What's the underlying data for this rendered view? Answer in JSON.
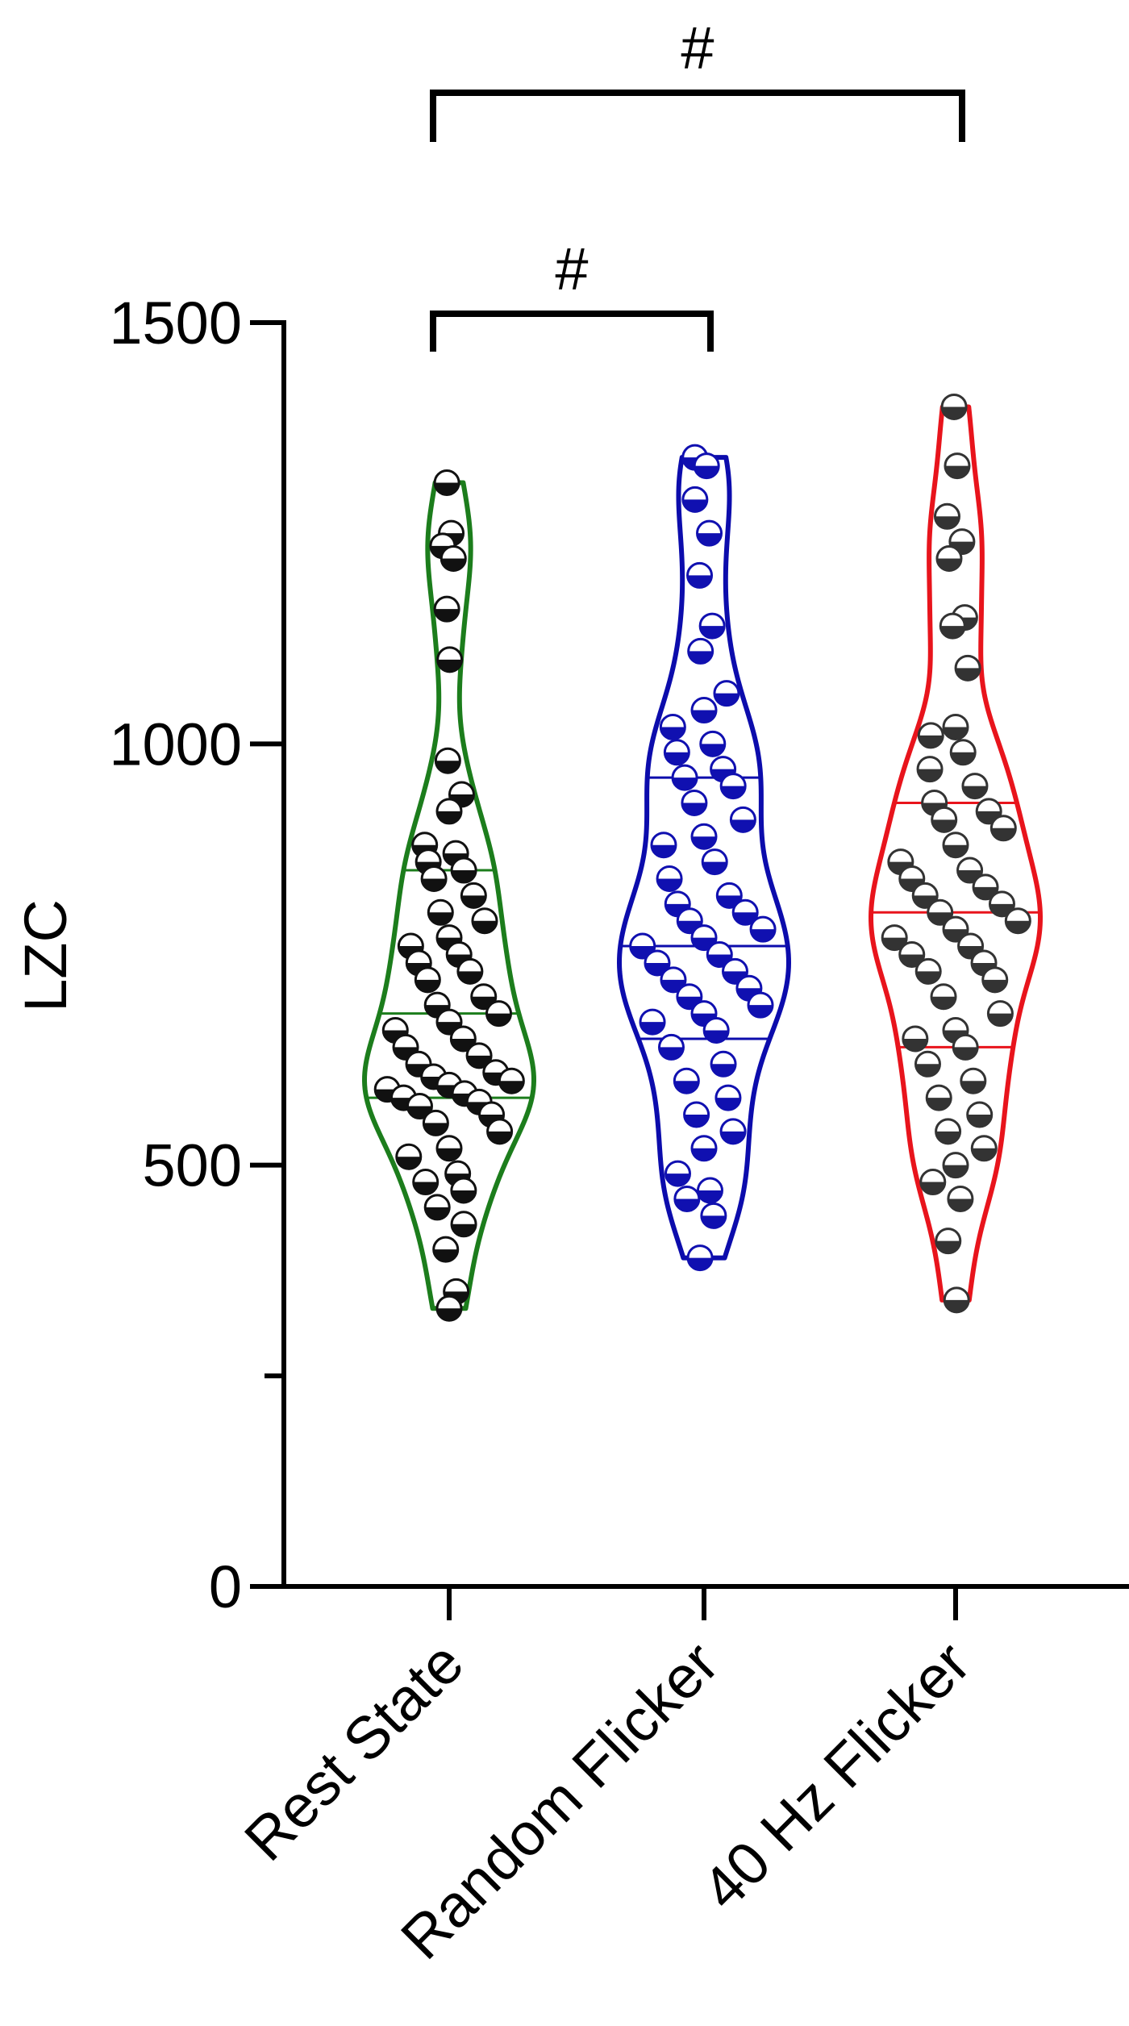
{
  "chart_data": {
    "type": "violin",
    "ylabel": "LZC",
    "categories": [
      "Rest State",
      "Random Flicker",
      "40 Hz Flicker"
    ],
    "ylim": [
      0,
      1500
    ],
    "yticks": [
      0,
      500,
      1000,
      1500
    ],
    "minor_yticks": [
      250
    ],
    "series": [
      {
        "color": "#1c7d1c",
        "marker_color": "#111111",
        "quartiles": [
          580,
          680,
          850
        ],
        "values": [
          1310,
          1250,
          1235,
          1220,
          1160,
          1100,
          980,
          940,
          920,
          880,
          870,
          860,
          850,
          840,
          820,
          800,
          790,
          770,
          760,
          750,
          740,
          730,
          720,
          700,
          690,
          680,
          670,
          660,
          650,
          640,
          630,
          620,
          610,
          605,
          600,
          595,
          590,
          585,
          580,
          575,
          570,
          560,
          550,
          540,
          520,
          510,
          490,
          480,
          470,
          450,
          430,
          400,
          350,
          330
        ]
      },
      {
        "color": "#0c0cac",
        "marker_color": "#1010b0",
        "quartiles": [
          650,
          760,
          960
        ],
        "values": [
          1340,
          1330,
          1290,
          1250,
          1200,
          1140,
          1110,
          1060,
          1040,
          1020,
          1000,
          990,
          970,
          960,
          950,
          930,
          910,
          890,
          880,
          860,
          840,
          820,
          810,
          800,
          790,
          780,
          770,
          760,
          750,
          740,
          730,
          720,
          710,
          700,
          690,
          680,
          670,
          660,
          640,
          620,
          600,
          580,
          560,
          540,
          520,
          490,
          470,
          460,
          440,
          390
        ]
      },
      {
        "color": "#e8141c",
        "marker_color": "#333333",
        "quartiles": [
          640,
          800,
          930
        ],
        "values": [
          1400,
          1330,
          1270,
          1240,
          1220,
          1150,
          1140,
          1090,
          1020,
          1010,
          990,
          970,
          950,
          930,
          920,
          910,
          900,
          880,
          860,
          850,
          840,
          830,
          820,
          810,
          800,
          790,
          780,
          770,
          760,
          750,
          740,
          730,
          720,
          700,
          680,
          660,
          650,
          640,
          620,
          600,
          580,
          560,
          540,
          520,
          500,
          480,
          460,
          410,
          340
        ]
      }
    ],
    "comparisons": [
      {
        "label": "#",
        "from": "Rest State",
        "to": "40 Hz Flicker"
      },
      {
        "label": "#",
        "from": "Rest State",
        "to": "Random Flicker"
      }
    ]
  }
}
